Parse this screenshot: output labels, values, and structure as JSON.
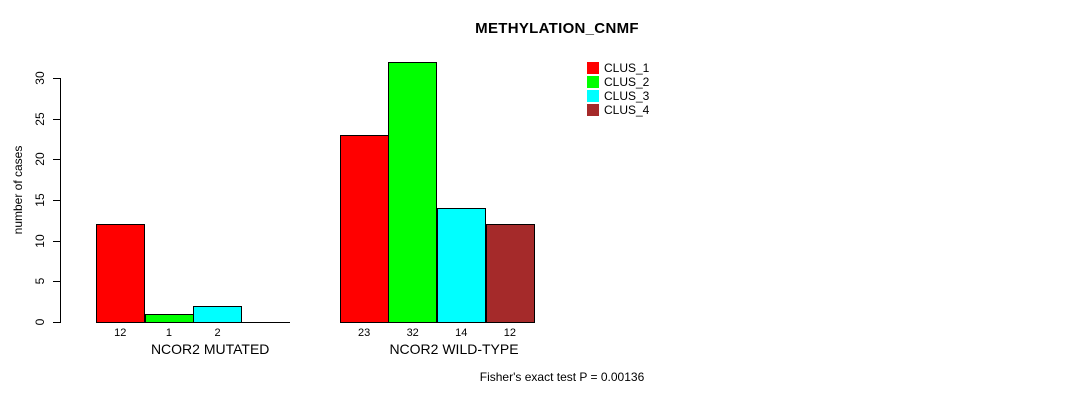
{
  "chart_data": {
    "type": "bar",
    "title": "METHYLATION_CNMF",
    "xlabel": "",
    "ylabel": "number of cases",
    "ylim": [
      0,
      30
    ],
    "yticks": [
      0,
      5,
      10,
      15,
      20,
      25,
      30
    ],
    "grid": false,
    "legend_position": "top-right",
    "categories": [
      "NCOR2 MUTATED",
      "NCOR2 WILD-TYPE"
    ],
    "series": [
      {
        "name": "CLUS_1",
        "color": "#FF0000",
        "values": [
          12,
          23
        ]
      },
      {
        "name": "CLUS_2",
        "color": "#00FF00",
        "values": [
          1,
          32
        ]
      },
      {
        "name": "CLUS_3",
        "color": "#00FFFF",
        "values": [
          2,
          14
        ]
      },
      {
        "name": "CLUS_4",
        "color": "#A52A2A",
        "values": [
          0,
          12
        ]
      }
    ],
    "bar_value_labels": [
      [
        "12",
        "1",
        "2",
        ""
      ],
      [
        "23",
        "32",
        "14",
        "12"
      ]
    ],
    "annotation": "Fisher's exact test P = 0.00136"
  },
  "legend": {
    "items": [
      {
        "label": "CLUS_1",
        "color": "#FF0000"
      },
      {
        "label": "CLUS_2",
        "color": "#00FF00"
      },
      {
        "label": "CLUS_3",
        "color": "#00FFFF"
      },
      {
        "label": "CLUS_4",
        "color": "#A52A2A"
      }
    ]
  }
}
